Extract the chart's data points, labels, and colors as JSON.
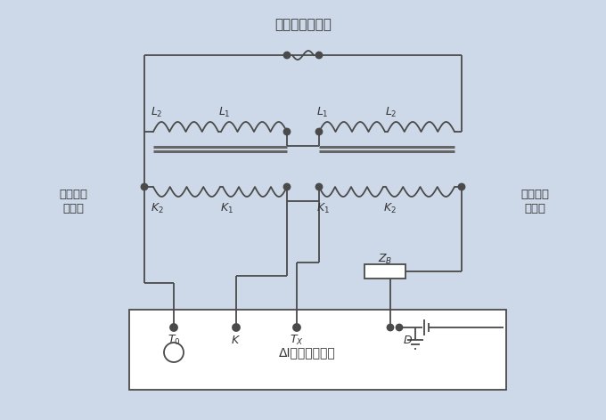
{
  "title_top": "接升流器输出端",
  "label_left_1": "标准电流",
  "label_left_2": "互感器",
  "label_right_1": "被检电流",
  "label_right_2": "互感器",
  "bg_color": "#cdd9e8",
  "line_color": "#4a4a4a",
  "font_color": "#333333",
  "fig_width": 6.8,
  "fig_height": 4.72,
  "dpi": 100
}
